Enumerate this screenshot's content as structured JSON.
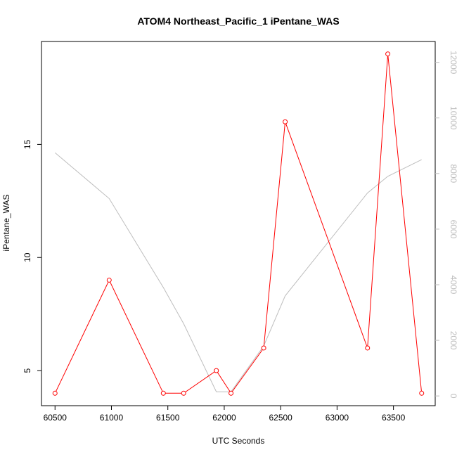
{
  "chart_data": {
    "type": "line",
    "title": "ATOM4 Northeast_Pacific_1 iPentane_WAS",
    "xlabel": "UTC Seconds",
    "ylabel": "iPentane_WAS",
    "xlim": [
      60380,
      63870
    ],
    "ylim": [
      3.45,
      19.55
    ],
    "y2lim": [
      -350,
      12750
    ],
    "x_ticks": [
      60500,
      61000,
      61500,
      62000,
      62500,
      63000,
      63500
    ],
    "y_ticks": [
      5,
      10,
      15
    ],
    "y2_ticks": [
      0,
      2000,
      4000,
      6000,
      8000,
      10000,
      12000
    ],
    "grid": false,
    "series": [
      {
        "color": "#ff0000",
        "axis": "left",
        "marker": "open-circle",
        "x": [
          60500,
          60980,
          61460,
          61640,
          61930,
          62060,
          62350,
          62540,
          63270,
          63450,
          63750
        ],
        "y": [
          4,
          9,
          4,
          4,
          5,
          4,
          6,
          16,
          6,
          19,
          4
        ]
      },
      {
        "color": "#bdbdbd",
        "axis": "right",
        "marker": "none",
        "x": [
          60500,
          60980,
          61460,
          61640,
          61930,
          62060,
          62350,
          62540,
          63270,
          63450,
          63750
        ],
        "y": [
          8750,
          7100,
          3900,
          2600,
          150,
          150,
          1800,
          3600,
          7300,
          7900,
          8500
        ]
      }
    ]
  }
}
